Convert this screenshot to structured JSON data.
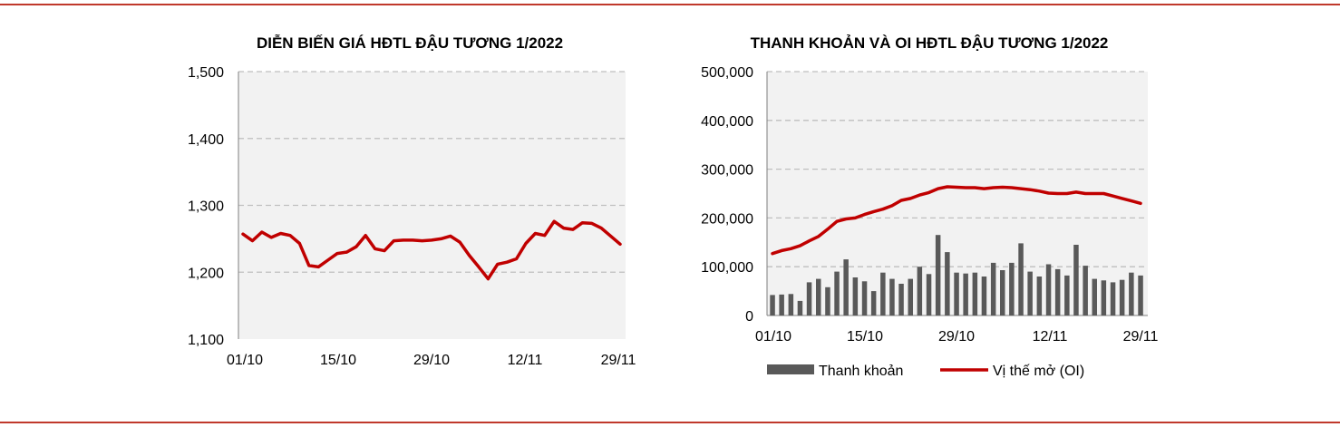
{
  "chart_data": [
    {
      "type": "line",
      "title": "DIỄN BIẾN GIÁ HĐTL ĐẬU TƯƠNG 1/2022",
      "xlabel": "",
      "ylabel": "",
      "x_tick_labels": [
        "01/10",
        "15/10",
        "29/10",
        "12/11",
        "29/11"
      ],
      "y_tick_labels": [
        "1,500",
        "1,400",
        "1,300",
        "1,200",
        "1,100"
      ],
      "ylim": [
        1100,
        1500
      ],
      "grid": "horizontal dashed",
      "series": [
        {
          "color": "#c00000",
          "values": [
            1257,
            1247,
            1260,
            1252,
            1258,
            1255,
            1243,
            1210,
            1208,
            1218,
            1228,
            1230,
            1238,
            1255,
            1235,
            1232,
            1247,
            1248,
            1248,
            1247,
            1248,
            1250,
            1254,
            1245,
            1225,
            1208,
            1190,
            1212,
            1215,
            1220,
            1243,
            1258,
            1255,
            1276,
            1266,
            1264,
            1274,
            1273,
            1266,
            1254,
            1242
          ]
        }
      ]
    },
    {
      "type": "bar+line",
      "title": "THANH KHOẢN VÀ OI HĐTL ĐẬU TƯƠNG 1/2022",
      "xlabel": "",
      "ylabel": "",
      "x_tick_labels": [
        "01/10",
        "15/10",
        "29/10",
        "12/11",
        "29/11"
      ],
      "y_tick_labels": [
        "500,000",
        "400,000",
        "300,000",
        "200,000",
        "100,000",
        "0"
      ],
      "ylim": [
        0,
        500000
      ],
      "grid": "horizontal dashed",
      "legend": {
        "position": "bottom",
        "items": [
          {
            "label": "Thanh khoản",
            "type": "bar",
            "color": "#595959"
          },
          {
            "label": "Vị thế mở (OI)",
            "type": "line",
            "color": "#c00000"
          }
        ]
      },
      "series": [
        {
          "name": "Thanh khoản",
          "type": "bar",
          "color": "#595959",
          "values": [
            42000,
            43000,
            44000,
            30000,
            68000,
            75000,
            58000,
            90000,
            115000,
            78000,
            70000,
            50000,
            88000,
            75000,
            65000,
            75000,
            100000,
            85000,
            165000,
            130000,
            88000,
            86000,
            88000,
            80000,
            108000,
            93000,
            108000,
            148000,
            90000,
            80000,
            105000,
            95000,
            82000,
            145000,
            102000,
            75000,
            72000,
            68000,
            73000,
            88000,
            82000
          ]
        },
        {
          "name": "Vị thế mở (OI)",
          "type": "line",
          "color": "#c00000",
          "values": [
            127000,
            133000,
            137000,
            143000,
            153000,
            162000,
            177000,
            193000,
            198000,
            200000,
            207000,
            213000,
            218000,
            225000,
            236000,
            240000,
            247000,
            252000,
            260000,
            264000,
            263000,
            262000,
            262000,
            260000,
            262000,
            263000,
            262000,
            260000,
            258000,
            255000,
            251000,
            250000,
            250000,
            253000,
            250000,
            250000,
            250000,
            245000,
            240000,
            235000,
            230000
          ]
        }
      ]
    }
  ]
}
